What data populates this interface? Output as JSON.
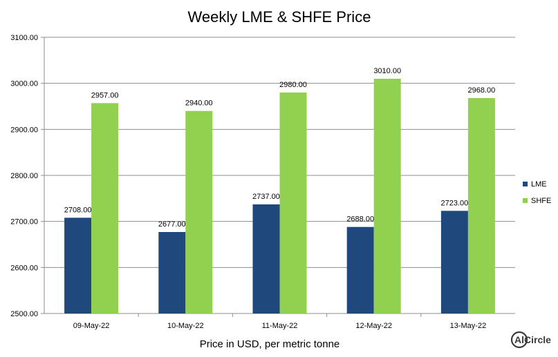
{
  "chart_data": {
    "type": "bar",
    "title": "Weekly LME & SHFE Price",
    "xlabel": "Price in USD, per metric tonne",
    "ylabel": "",
    "categories": [
      "09-May-22",
      "10-May-22",
      "11-May-22",
      "12-May-22",
      "13-May-22"
    ],
    "series": [
      {
        "name": "LME",
        "color": "#1f497d",
        "values": [
          2708.0,
          2677.0,
          2737.0,
          2688.0,
          2723.0
        ]
      },
      {
        "name": "SHFE",
        "color": "#92d050",
        "values": [
          2957.0,
          2940.0,
          2980.0,
          3010.0,
          2968.0
        ]
      }
    ],
    "ylim": [
      2500,
      3100
    ],
    "yticks": [
      "2500.00",
      "2600.00",
      "2700.00",
      "2800.00",
      "2900.00",
      "3000.00",
      "3100.00"
    ],
    "grid": true,
    "legend_position": "right"
  },
  "logo": {
    "text": "AlCircle",
    "icon": "alcircle-logo-icon"
  }
}
